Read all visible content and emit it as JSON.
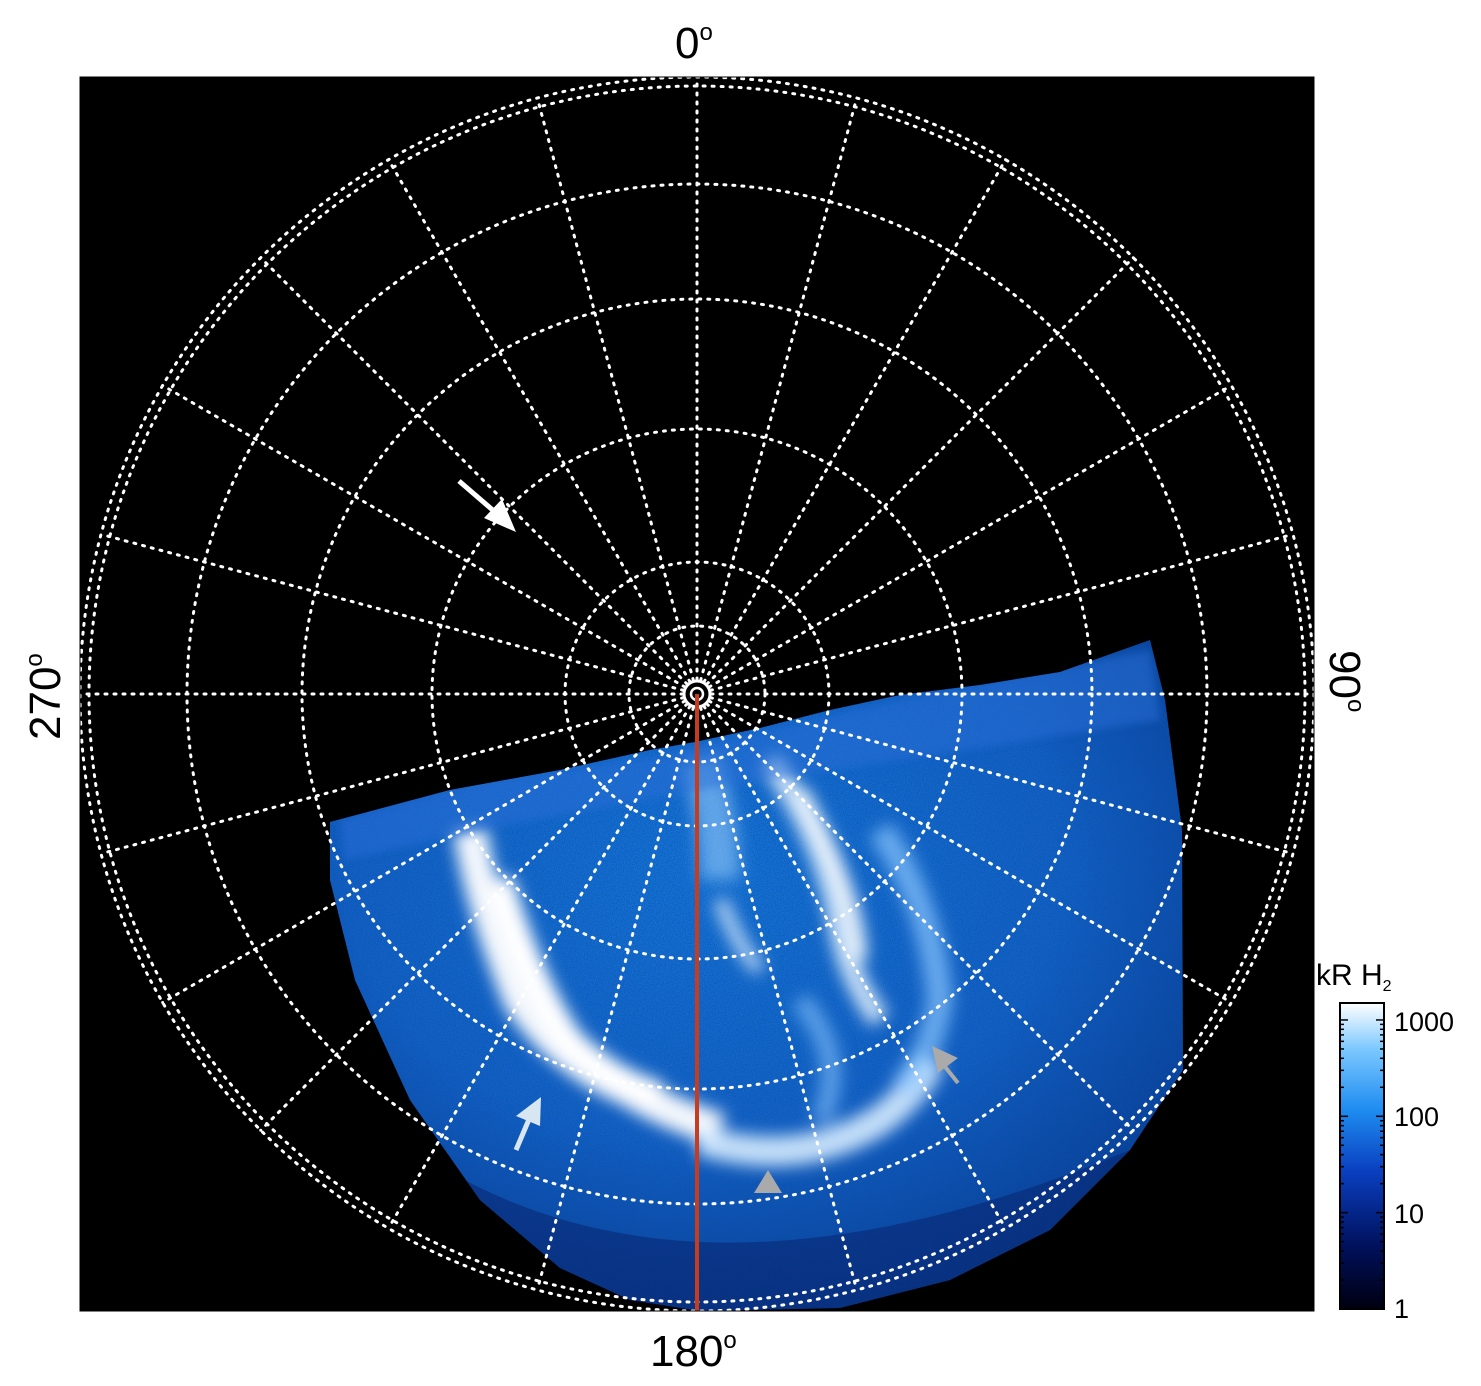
{
  "figure": {
    "labels": {
      "top": "0",
      "bottom": "180",
      "left": "270",
      "right": "90",
      "degree_symbol": "o"
    },
    "colorbar": {
      "title_main": "kR H",
      "title_sub": "2",
      "ticks": [
        "1000",
        "100",
        "10",
        "1"
      ],
      "scale": "log",
      "range": [
        1,
        1500
      ],
      "colors": [
        "#000010",
        "#00105a",
        "#0a3fc0",
        "#1e8cf0",
        "#7cc8ff",
        "#ffffff"
      ]
    },
    "plot": {
      "background": "#000000",
      "grid_color": "#ffffff",
      "meridian_line_color": "#c83c1e",
      "arrow_white": "#ffffff",
      "arrow_light": "#d8e6f2",
      "arrow_gray": "#aaaaaa"
    }
  }
}
